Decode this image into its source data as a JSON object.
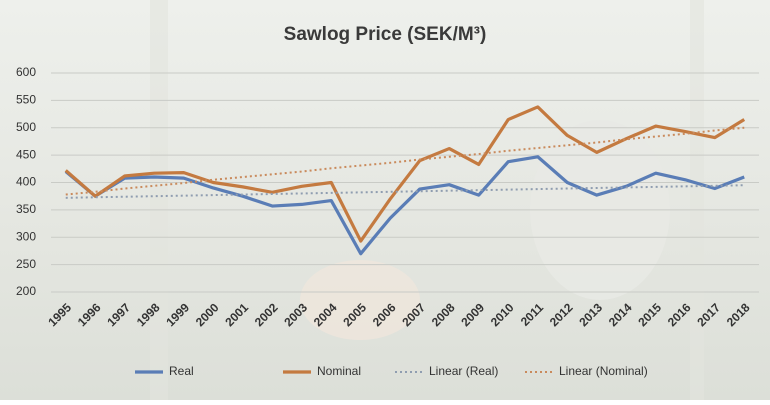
{
  "chart_data": {
    "type": "line",
    "title": "Sawlog Price (SEK/M³)",
    "categories": [
      "1995",
      "1996",
      "1997",
      "1998",
      "1999",
      "2000",
      "2001",
      "2002",
      "2003",
      "2004",
      "2005",
      "2006",
      "2007",
      "2008",
      "2009",
      "2010",
      "2011",
      "2012",
      "2013",
      "2014",
      "2015",
      "2016",
      "2017",
      "2018"
    ],
    "series": [
      {
        "name": "Real",
        "color": "#5a7db6",
        "style": "solid",
        "values": [
          420,
          375,
          408,
          410,
          408,
          390,
          375,
          357,
          360,
          367,
          270,
          335,
          388,
          396,
          377,
          438,
          447,
          400,
          377,
          393,
          417,
          405,
          389,
          410
        ]
      },
      {
        "name": "Nominal",
        "color": "#c47a40",
        "style": "solid",
        "values": [
          422,
          375,
          412,
          417,
          418,
          400,
          392,
          382,
          393,
          400,
          293,
          370,
          440,
          462,
          433,
          515,
          538,
          486,
          455,
          480,
          503,
          493,
          482,
          515
        ]
      },
      {
        "name": "Linear (Real)",
        "color": "#8f9db0",
        "style": "dotted",
        "values": [
          372,
          373,
          374,
          375,
          376,
          377,
          378,
          379,
          380,
          381,
          382,
          383,
          384,
          385,
          386,
          387,
          388,
          389,
          390,
          391,
          392,
          393,
          394,
          395
        ]
      },
      {
        "name": "Linear (Nominal)",
        "color": "#c98a5c",
        "style": "dotted",
        "values": [
          378,
          383,
          389,
          394,
          399,
          405,
          410,
          415,
          420,
          426,
          431,
          436,
          442,
          447,
          452,
          458,
          463,
          468,
          473,
          479,
          484,
          489,
          495,
          500
        ]
      }
    ],
    "ylim": [
      200,
      600
    ],
    "yticks": [
      200,
      250,
      300,
      350,
      400,
      450,
      500,
      550,
      600
    ],
    "grid": true
  }
}
